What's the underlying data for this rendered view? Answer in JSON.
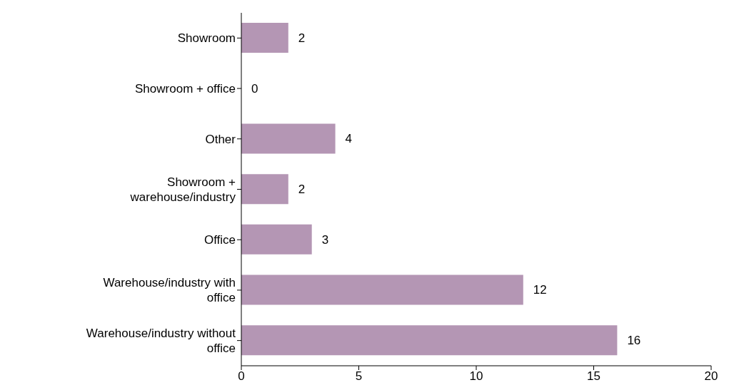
{
  "chart_data": {
    "type": "bar",
    "orientation": "horizontal",
    "categories": [
      "Showroom",
      "Showroom + office",
      "Other",
      "Showroom + warehouse/industry",
      "Office",
      "Warehouse/industry with office",
      "Warehouse/industry without office"
    ],
    "values": [
      2,
      0,
      4,
      2,
      3,
      12,
      16
    ],
    "color": "#b496b4",
    "xlim": [
      0,
      20
    ],
    "xticks": [
      0,
      5,
      10,
      15,
      20
    ],
    "data_labels": true,
    "grid": false
  }
}
